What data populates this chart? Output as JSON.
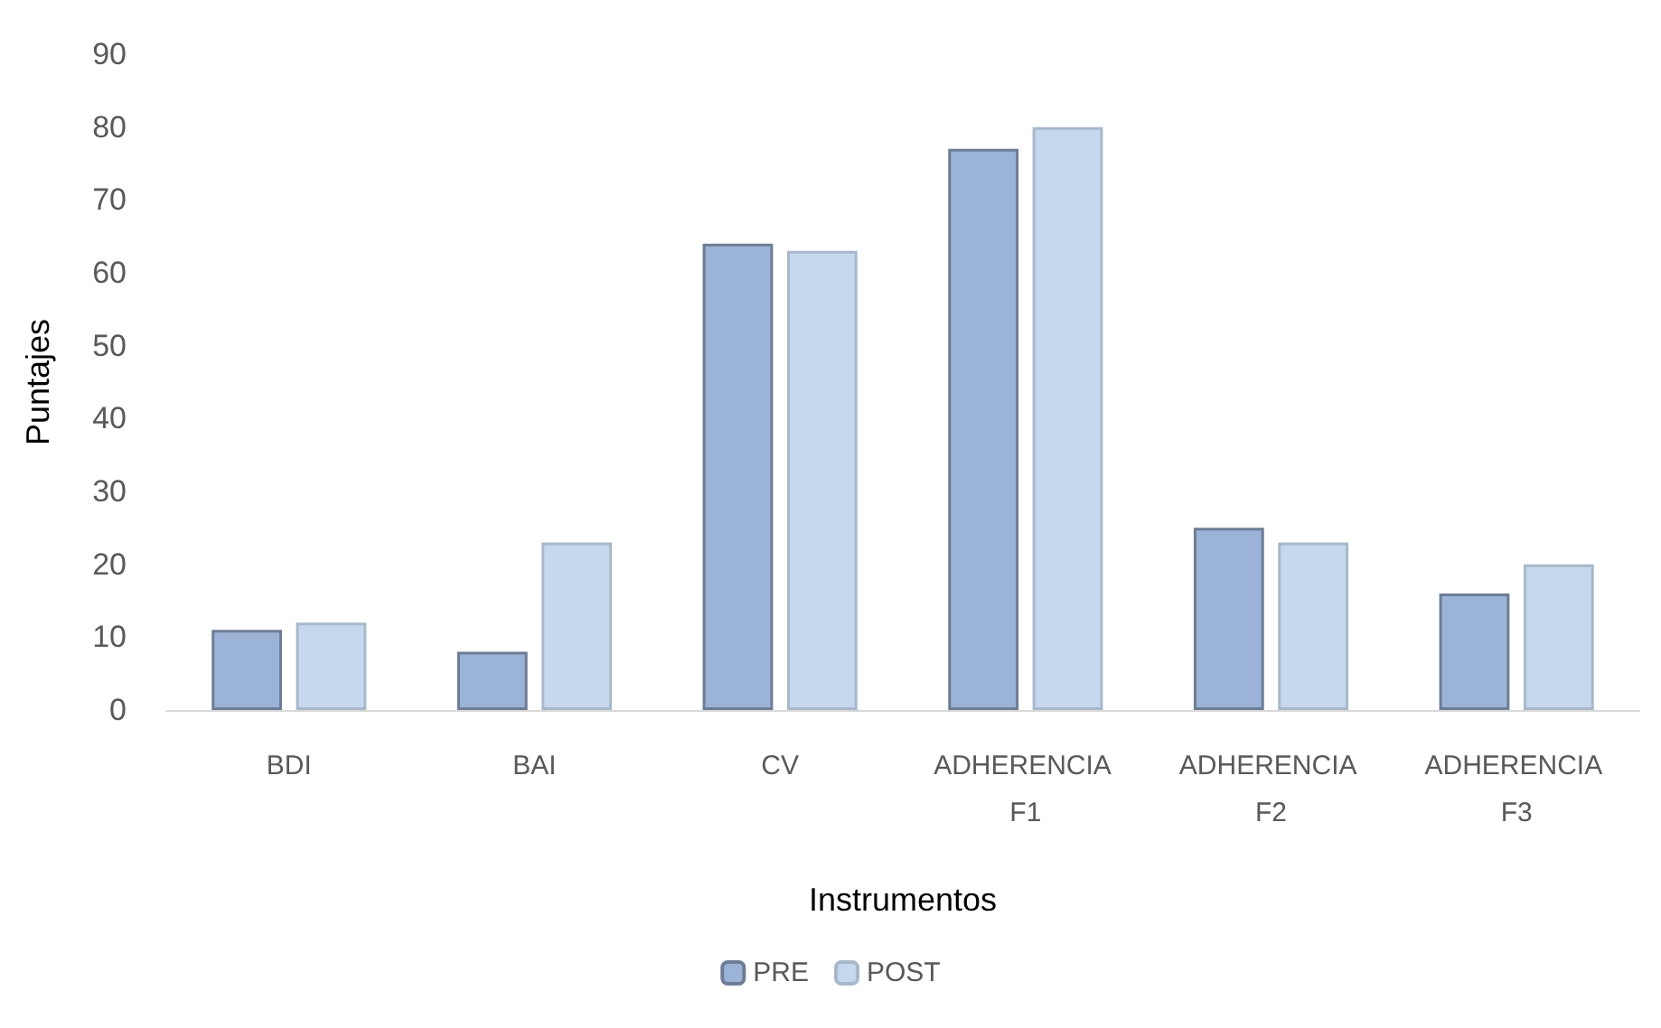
{
  "chart_data": {
    "type": "bar",
    "xlabel": "Instrumentos",
    "ylabel": "Puntajes",
    "categories": [
      "BDI",
      "BAI",
      "CV",
      "ADHERENCIA F1",
      "ADHERENCIA F2",
      "ADHERENCIA F3"
    ],
    "series": [
      {
        "name": "PRE",
        "color": "#9bb3d6",
        "values": [
          11,
          8,
          64,
          77,
          25,
          16
        ]
      },
      {
        "name": "POST",
        "color": "#c6d8ee",
        "values": [
          12,
          23,
          63,
          80,
          23,
          20
        ]
      }
    ],
    "ylim": [
      0,
      90
    ],
    "yticks": [
      0,
      10,
      20,
      30,
      40,
      50,
      60,
      70,
      80,
      90
    ],
    "grid": false,
    "legend": "bottom"
  }
}
